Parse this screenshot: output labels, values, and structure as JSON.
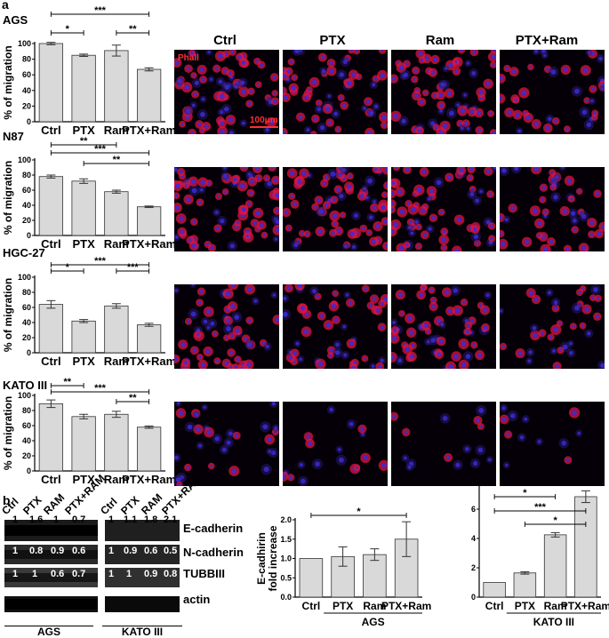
{
  "panels": {
    "a": "a",
    "b": "b"
  },
  "conditions_a": [
    "Ctrl",
    "PTX",
    "Ram",
    "PTX+Ram"
  ],
  "micro_labels": {
    "stain": "Phall",
    "scale": "100μm"
  },
  "colors": {
    "bar": "#d9d9d9",
    "bar_stroke": "#333333",
    "nucleus": "#3b2bd6",
    "actin": "#e0143c"
  },
  "chart_data": [
    {
      "type": "bar",
      "title": "AGS",
      "categories": [
        "Ctrl",
        "PTX",
        "Ram",
        "PTX+Ram"
      ],
      "values": [
        100,
        85,
        91,
        67
      ],
      "errors": [
        1.5,
        1.5,
        7,
        2
      ],
      "ylabel": "% of migration",
      "ylim": [
        0,
        100
      ],
      "yticks": [
        0,
        20,
        40,
        60,
        80,
        100
      ],
      "significance": [
        {
          "from": 0,
          "to": 3,
          "label": "***"
        },
        {
          "from": 0,
          "to": 1,
          "label": "*"
        },
        {
          "from": 2,
          "to": 3,
          "label": "**"
        }
      ]
    },
    {
      "type": "bar",
      "title": "N87",
      "categories": [
        "Ctrl",
        "PTX",
        "Ram",
        "PTX+Ram"
      ],
      "values": [
        78,
        72,
        58,
        38
      ],
      "errors": [
        2,
        3,
        2,
        1
      ],
      "ylabel": "% of migration",
      "ylim": [
        0,
        100
      ],
      "yticks": [
        0,
        20,
        40,
        60,
        80,
        100
      ],
      "significance": [
        {
          "from": 0,
          "to": 2,
          "label": "**"
        },
        {
          "from": 0,
          "to": 3,
          "label": "***"
        },
        {
          "from": 1,
          "to": 3,
          "label": "**"
        }
      ]
    },
    {
      "type": "bar",
      "title": "HGC-27",
      "categories": [
        "Ctrl",
        "PTX",
        "Ram",
        "PTX+Ram"
      ],
      "values": [
        64,
        42,
        62,
        37
      ],
      "errors": [
        5,
        2,
        3,
        2
      ],
      "ylabel": "% of migration",
      "ylim": [
        0,
        100
      ],
      "yticks": [
        0,
        20,
        40,
        60,
        80,
        100
      ],
      "significance": [
        {
          "from": 0,
          "to": 3,
          "label": "***"
        },
        {
          "from": 0,
          "to": 1,
          "label": "*"
        },
        {
          "from": 2,
          "to": 3,
          "label": "***"
        }
      ]
    },
    {
      "type": "bar",
      "title": "KATO III",
      "categories": [
        "Ctrl",
        "PTX",
        "Ram",
        "PTX+Ram"
      ],
      "values": [
        89,
        72,
        75,
        58
      ],
      "errors": [
        5,
        3,
        4,
        1.5
      ],
      "ylabel": "% of migration",
      "ylim": [
        0,
        100
      ],
      "yticks": [
        0,
        20,
        40,
        60,
        80,
        100
      ],
      "significance": [
        {
          "from": 0,
          "to": 1,
          "label": "**"
        },
        {
          "from": 0,
          "to": 3,
          "label": "***"
        },
        {
          "from": 2,
          "to": 3,
          "label": "**"
        }
      ]
    },
    {
      "type": "bar",
      "title": "",
      "group_label": "AGS",
      "categories": [
        "Ctrl",
        "PTX",
        "Ram",
        "PTX+Ram"
      ],
      "values": [
        1.0,
        1.05,
        1.1,
        1.5
      ],
      "errors": [
        0,
        0.25,
        0.15,
        0.45
      ],
      "ylabel": "E-cadhirin fold increase",
      "ylim": [
        0,
        2.0
      ],
      "yticks": [
        0.0,
        0.5,
        1.0,
        1.5,
        2.0
      ],
      "significance": [
        {
          "from": 0,
          "to": 3,
          "label": "*"
        }
      ]
    },
    {
      "type": "bar",
      "title": "",
      "group_label": "KATO III",
      "categories": [
        "Ctrl",
        "PTX",
        "Ram",
        "PTX+Ram"
      ],
      "values": [
        1.0,
        1.65,
        4.25,
        6.85
      ],
      "errors": [
        0,
        0.08,
        0.15,
        0.4
      ],
      "ylabel": "",
      "ylim": [
        0,
        8
      ],
      "yticks": [
        0,
        2,
        4,
        6,
        8
      ],
      "significance": [
        {
          "from": 0,
          "to": 2,
          "label": "*"
        },
        {
          "from": 0,
          "to": 3,
          "label": "***"
        },
        {
          "from": 1,
          "to": 3,
          "label": "*"
        }
      ]
    }
  ],
  "blots": {
    "proteins": [
      "E-cadherin",
      "N-cadherin",
      "TUBBIII",
      "actin"
    ],
    "AGS": {
      "lanes": [
        "Ctrl",
        "PTX",
        "RAM",
        "PTX+RAM"
      ],
      "group_label": "AGS",
      "ecad": [
        "1",
        "1.6",
        "1",
        "0.7"
      ],
      "ncad": [
        "1",
        "0.8",
        "0.9",
        "0.6"
      ],
      "tubb": [
        "1",
        "1",
        "0.6",
        "0.7"
      ]
    },
    "KATO": {
      "lanes": [
        "Ctrl",
        "PTX",
        "RAM",
        "PTX+RAM"
      ],
      "group_label": "KATO III",
      "ecad": [
        "1",
        "1.1",
        "1.8",
        "2.1"
      ],
      "ncad": [
        "1",
        "0.9",
        "0.6",
        "0.5"
      ],
      "tubb": [
        "1",
        "1",
        "0.9",
        "0.8"
      ]
    }
  }
}
